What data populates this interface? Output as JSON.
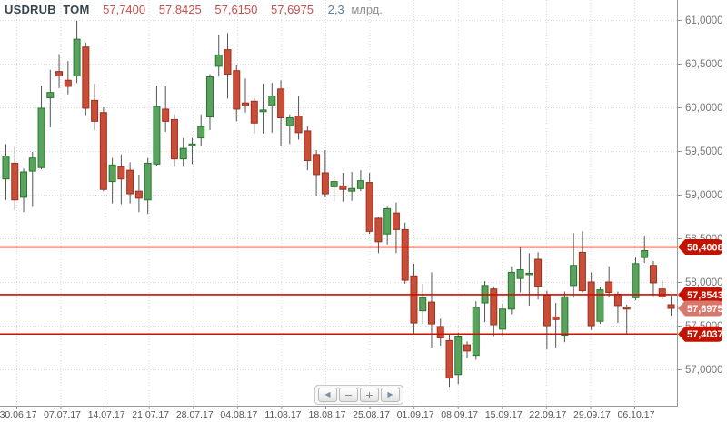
{
  "header": {
    "symbol": "USDRUB_TOM",
    "open": "57,7400",
    "high": "57,8425",
    "low": "57,6150",
    "close": "57,6975",
    "volume": "2,3",
    "volume_unit": "млрд."
  },
  "nav": {
    "prev": "◀",
    "zoom_out": "−",
    "zoom_in": "+",
    "next": "▶"
  },
  "colors": {
    "up_fill": "#5aa35f",
    "up_stroke": "#27762b",
    "down_fill": "#c94e37",
    "down_stroke": "#9c3020",
    "wick": "#555555",
    "grid": "#dadada",
    "axis": "#9a9a9a",
    "axis_label": "#777777",
    "date_label": "#555555",
    "level_line": "#cc1100",
    "badge": "#c41200",
    "badge_last": "#d8776c",
    "badge_text": "#ffffff"
  },
  "chart_data": {
    "type": "candlestick",
    "title": "USDRUB_TOM",
    "ylim": [
      56.58,
      61.23
    ],
    "grid": true,
    "y_ticks": [
      {
        "v": 61.0,
        "t": "61,0000"
      },
      {
        "v": 60.5,
        "t": "60,5000"
      },
      {
        "v": 60.0,
        "t": "60,0000"
      },
      {
        "v": 59.5,
        "t": "59,5000"
      },
      {
        "v": 59.0,
        "t": "59,0000"
      },
      {
        "v": 58.5,
        "t": "58,5000"
      },
      {
        "v": 58.0,
        "t": "58,0000"
      },
      {
        "v": 57.5,
        "t": "57,5000"
      },
      {
        "v": 57.0,
        "t": "57,0000"
      }
    ],
    "x_ticks": [
      "30.06.17",
      "07.07.17",
      "14.07.17",
      "21.07.17",
      "28.07.17",
      "04.08.17",
      "11.08.17",
      "18.08.17",
      "25.08.17",
      "01.09.17",
      "08.09.17",
      "15.09.17",
      "22.09.17",
      "29.09.17",
      "06.10.17"
    ],
    "levels": [
      {
        "v": 58.4008,
        "t": "58,4008"
      },
      {
        "v": 57.8543,
        "t": "57,8543"
      },
      {
        "v": 57.4037,
        "t": "57,4037"
      }
    ],
    "last_price": {
      "v": 57.6975,
      "t": "57,6975"
    },
    "candles_format": [
      "open",
      "high",
      "low",
      "close"
    ],
    "candles": [
      [
        59.18,
        59.58,
        58.94,
        59.44
      ],
      [
        59.36,
        59.55,
        58.82,
        58.94
      ],
      [
        58.97,
        59.3,
        58.8,
        59.26
      ],
      [
        59.27,
        59.49,
        58.86,
        59.42
      ],
      [
        59.31,
        60.25,
        59.29,
        59.99
      ],
      [
        60.11,
        60.43,
        59.77,
        60.17
      ],
      [
        60.41,
        60.61,
        60.22,
        60.36
      ],
      [
        60.31,
        60.53,
        60.15,
        60.24
      ],
      [
        60.36,
        60.99,
        60.28,
        60.78
      ],
      [
        60.69,
        60.74,
        59.91,
        59.99
      ],
      [
        60.08,
        60.27,
        59.74,
        59.84
      ],
      [
        59.94,
        60.0,
        59.04,
        59.06
      ],
      [
        59.15,
        59.42,
        58.9,
        59.34
      ],
      [
        59.32,
        59.46,
        58.89,
        59.18
      ],
      [
        59.28,
        59.37,
        58.9,
        59.01
      ],
      [
        59.04,
        59.23,
        58.8,
        58.96
      ],
      [
        58.94,
        59.42,
        58.78,
        59.36
      ],
      [
        59.35,
        60.25,
        59.33,
        60.01
      ],
      [
        59.98,
        60.24,
        59.72,
        59.84
      ],
      [
        59.86,
        59.92,
        59.32,
        59.41
      ],
      [
        59.41,
        59.65,
        59.32,
        59.53
      ],
      [
        59.56,
        59.65,
        59.35,
        59.58
      ],
      [
        59.65,
        59.92,
        59.56,
        59.78
      ],
      [
        59.89,
        60.38,
        59.74,
        60.35
      ],
      [
        60.47,
        60.83,
        60.35,
        60.6
      ],
      [
        60.66,
        60.85,
        60.1,
        60.38
      ],
      [
        60.42,
        60.48,
        59.84,
        59.98
      ],
      [
        60.05,
        60.33,
        59.94,
        60.02
      ],
      [
        60.07,
        60.11,
        59.7,
        59.82
      ],
      [
        59.95,
        60.27,
        59.7,
        59.97
      ],
      [
        60.02,
        60.28,
        59.71,
        60.13
      ],
      [
        60.21,
        60.31,
        59.56,
        59.88
      ],
      [
        59.79,
        59.92,
        59.58,
        59.88
      ],
      [
        59.9,
        60.13,
        59.63,
        59.71
      ],
      [
        59.73,
        59.78,
        59.28,
        59.39
      ],
      [
        59.46,
        59.51,
        58.99,
        59.23
      ],
      [
        59.25,
        59.51,
        58.97,
        59.01
      ],
      [
        59.09,
        59.22,
        58.92,
        59.15
      ],
      [
        59.1,
        59.25,
        58.92,
        59.06
      ],
      [
        59.04,
        59.26,
        58.93,
        59.07
      ],
      [
        59.07,
        59.28,
        59.04,
        59.16
      ],
      [
        59.14,
        59.25,
        58.55,
        58.58
      ],
      [
        58.73,
        58.75,
        58.33,
        58.46
      ],
      [
        58.55,
        58.86,
        58.43,
        58.84
      ],
      [
        58.79,
        58.91,
        58.33,
        58.6
      ],
      [
        58.6,
        58.68,
        57.98,
        58.02
      ],
      [
        58.07,
        58.21,
        57.41,
        57.53
      ],
      [
        57.67,
        57.98,
        57.52,
        57.82
      ],
      [
        57.77,
        58.11,
        57.24,
        57.52
      ],
      [
        57.49,
        57.58,
        57.27,
        57.36
      ],
      [
        57.33,
        57.41,
        56.8,
        56.9
      ],
      [
        56.94,
        57.42,
        56.83,
        57.38
      ],
      [
        57.28,
        57.32,
        57.13,
        57.21
      ],
      [
        57.16,
        57.78,
        57.11,
        57.71
      ],
      [
        57.76,
        58.01,
        57.54,
        57.96
      ],
      [
        57.92,
        57.95,
        57.38,
        57.51
      ],
      [
        57.46,
        57.75,
        57.38,
        57.69
      ],
      [
        57.69,
        58.18,
        57.63,
        58.11
      ],
      [
        58.04,
        58.4,
        57.88,
        58.14
      ],
      [
        58.09,
        58.33,
        57.73,
        58.1
      ],
      [
        58.26,
        58.34,
        57.8,
        57.95
      ],
      [
        57.85,
        57.9,
        57.23,
        57.5
      ],
      [
        57.6,
        57.76,
        57.24,
        57.57
      ],
      [
        57.39,
        57.89,
        57.31,
        57.83
      ],
      [
        57.96,
        58.56,
        57.82,
        58.19
      ],
      [
        58.34,
        58.58,
        57.88,
        57.9
      ],
      [
        58.0,
        58.11,
        57.45,
        57.5
      ],
      [
        57.55,
        57.94,
        57.52,
        57.91
      ],
      [
        58.0,
        58.18,
        57.83,
        57.88
      ],
      [
        57.86,
        57.89,
        57.53,
        57.73
      ],
      [
        57.71,
        57.74,
        57.4,
        57.69
      ],
      [
        57.82,
        58.28,
        57.79,
        58.21
      ],
      [
        58.28,
        58.53,
        58.22,
        58.36
      ],
      [
        58.19,
        58.24,
        57.84,
        57.99
      ],
      [
        57.92,
        58.02,
        57.8,
        57.83
      ],
      [
        57.74,
        57.8425,
        57.615,
        57.6975
      ]
    ]
  }
}
